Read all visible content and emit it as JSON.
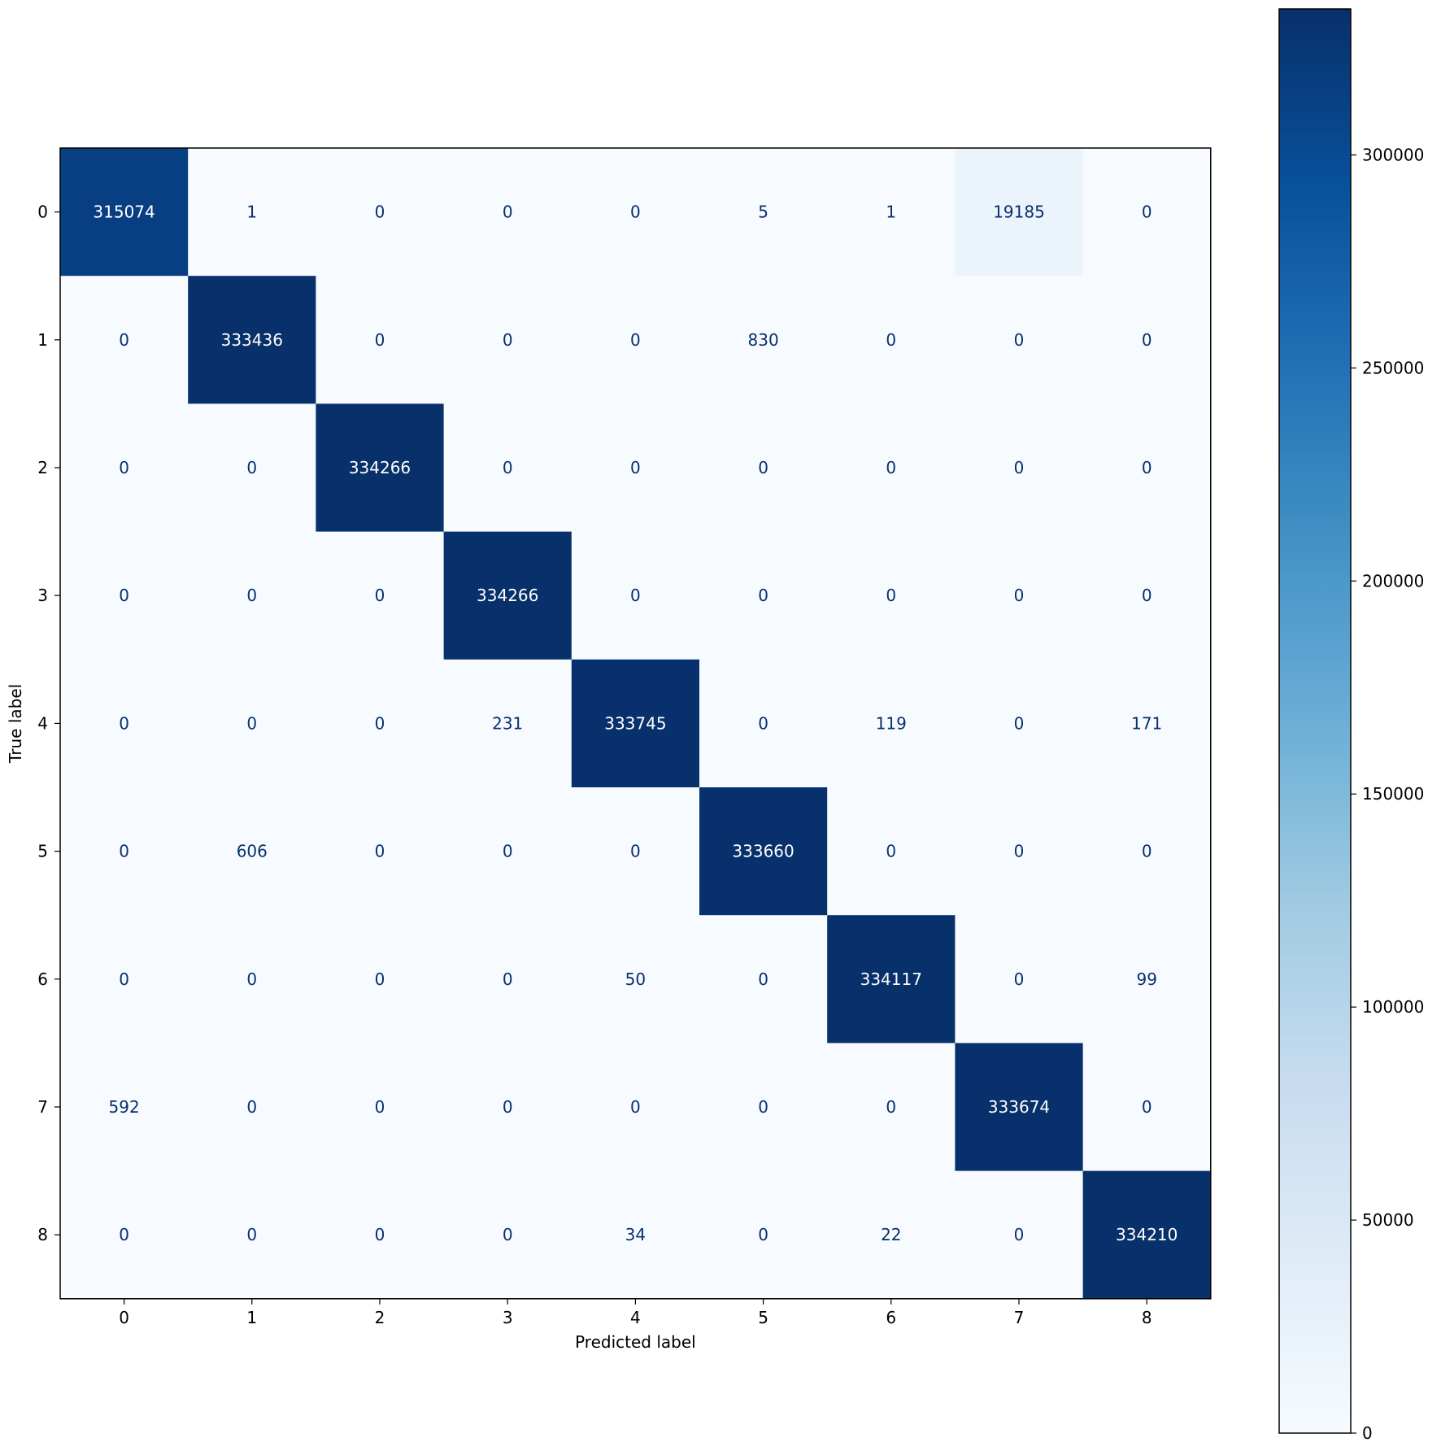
{
  "chart_data": {
    "type": "heatmap",
    "title": "",
    "xlabel": "Predicted label",
    "ylabel": "True label",
    "x_categories": [
      "0",
      "1",
      "2",
      "3",
      "4",
      "5",
      "6",
      "7",
      "8"
    ],
    "y_categories": [
      "0",
      "1",
      "2",
      "3",
      "4",
      "5",
      "6",
      "7",
      "8"
    ],
    "matrix": [
      [
        315074,
        1,
        0,
        0,
        0,
        5,
        1,
        19185,
        0
      ],
      [
        0,
        333436,
        0,
        0,
        0,
        830,
        0,
        0,
        0
      ],
      [
        0,
        0,
        334266,
        0,
        0,
        0,
        0,
        0,
        0
      ],
      [
        0,
        0,
        0,
        334266,
        0,
        0,
        0,
        0,
        0
      ],
      [
        0,
        0,
        0,
        231,
        333745,
        0,
        119,
        0,
        171
      ],
      [
        0,
        606,
        0,
        0,
        0,
        333660,
        0,
        0,
        0
      ],
      [
        0,
        0,
        0,
        0,
        50,
        0,
        334117,
        0,
        99
      ],
      [
        592,
        0,
        0,
        0,
        0,
        0,
        0,
        333674,
        0
      ],
      [
        0,
        0,
        0,
        0,
        34,
        0,
        22,
        0,
        334210
      ]
    ],
    "colormap": "Blues",
    "colorbar": {
      "vmin": 0,
      "vmax": 334266,
      "ticks": [
        0,
        50000,
        100000,
        150000,
        200000,
        250000,
        300000
      ]
    },
    "legend": "none",
    "grid": false
  }
}
